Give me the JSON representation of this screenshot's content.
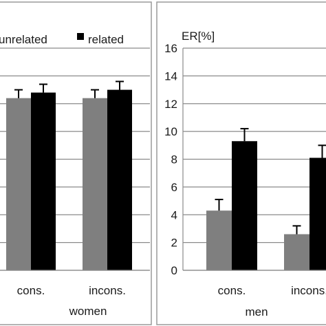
{
  "chart_data": [
    {
      "type": "bar",
      "group_label": "women",
      "categories": [
        "cons.",
        "incons."
      ],
      "series": [
        {
          "name": "unrelated",
          "color": "#7f7f7f",
          "values": [
            12.4,
            12.4
          ],
          "errors": [
            0.6,
            0.6
          ]
        },
        {
          "name": "related",
          "color": "#000000",
          "values": [
            12.8,
            13.0
          ],
          "errors": [
            0.6,
            0.6
          ]
        }
      ],
      "ylim": [
        0,
        16
      ],
      "grid": true,
      "legend": "top"
    },
    {
      "type": "bar",
      "group_label": "men",
      "ylabel": "ER[%]",
      "categories": [
        "cons.",
        "incons."
      ],
      "yticks": [
        "0",
        "2",
        "4",
        "6",
        "8",
        "10",
        "12",
        "14",
        "16"
      ],
      "series": [
        {
          "name": "unrelated",
          "color": "#7f7f7f",
          "values": [
            4.3,
            2.6
          ],
          "errors": [
            0.8,
            0.6
          ]
        },
        {
          "name": "related",
          "color": "#000000",
          "values": [
            9.3,
            8.1
          ],
          "errors": [
            0.9,
            0.9
          ]
        }
      ],
      "ylim": [
        0,
        16
      ],
      "grid": true
    }
  ]
}
